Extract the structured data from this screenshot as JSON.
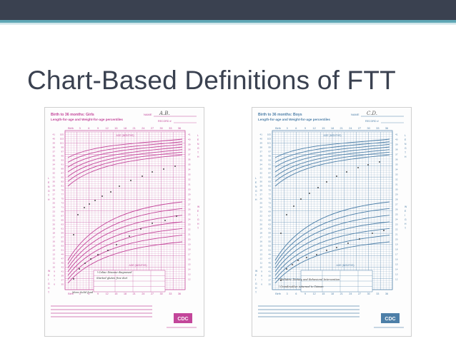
{
  "slide": {
    "title": "Chart-Based Definitions of FTT"
  },
  "charts": [
    {
      "id": "girls",
      "color": "#c3469a",
      "heading": "Birth to 36 months: Girls",
      "subheading": "Length-for-age and Weight-for-age percentiles",
      "name_label": "NAME",
      "name_value": "A.B.",
      "record_label": "RECORD #",
      "age_label": "AGE (MONTHS)",
      "age_ticks": [
        "Birth",
        "3",
        "6",
        "9",
        "12",
        "15",
        "18",
        "21",
        "24",
        "27",
        "30",
        "33",
        "36"
      ],
      "annotations": [
        "↑Celiac Disease diagnosed",
        "Started gluten free diet",
        "More Solid food"
      ],
      "logo": "CDC"
    },
    {
      "id": "boys",
      "color": "#4d7fa8",
      "heading": "Birth to 36 months: Boys",
      "subheading": "Length-for-age and Weight-for-age percentiles",
      "name_label": "NAME",
      "name_value": "C.D.",
      "record_label": "RECORD #",
      "age_label": "AGE (MONTHS)",
      "age_ticks": [
        "Birth",
        "3",
        "6",
        "9",
        "12",
        "15",
        "18",
        "21",
        "24",
        "27",
        "30",
        "33",
        "36"
      ],
      "annotations": [
        "↑Pediatric Dietary and Behavioral Intervention",
        "↑Grandmother returned to Taiwan"
      ],
      "logo": "CDC"
    }
  ]
}
